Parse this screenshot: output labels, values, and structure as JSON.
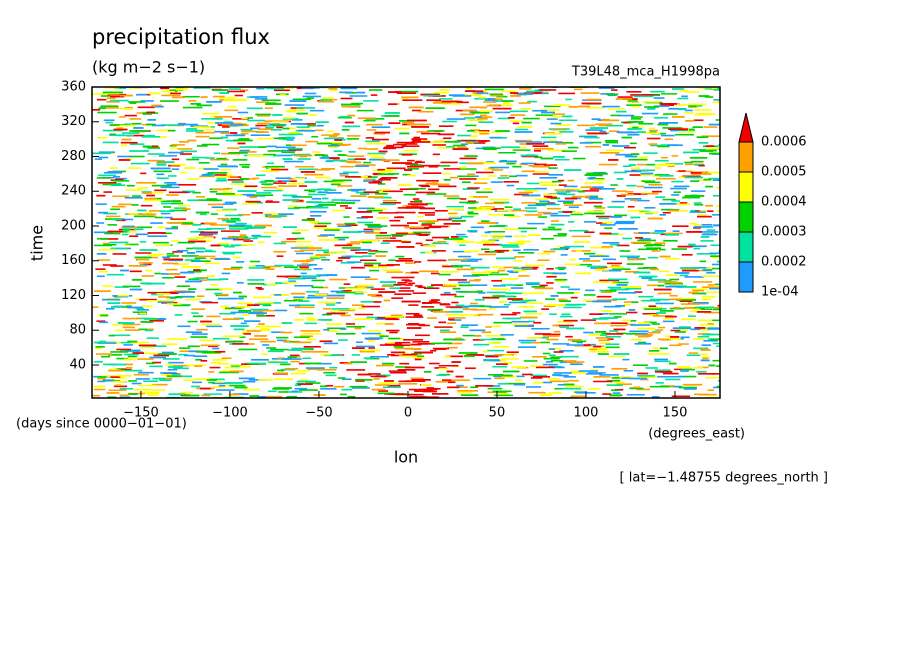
{
  "chart_data": {
    "type": "hovmoller",
    "title": "precipitation flux",
    "units": "(kg m−2 s−1)",
    "subtitle": "T39L48_mca_H1998pa",
    "xlabel": "lon",
    "ylabel": "time",
    "x_units": "(degrees_east)",
    "y_units": "(days since 0000−01−01)",
    "annotation": "[ lat=−1.48755 degrees_north ]",
    "xlim": [
      -177.5,
      175.3
    ],
    "xticks": [
      {
        "value": -150,
        "label": "−150"
      },
      {
        "value": -100,
        "label": "−100"
      },
      {
        "value": -50,
        "label": "−50"
      },
      0,
      50,
      100,
      150
    ],
    "ylim": [
      2,
      360
    ],
    "yticks": [
      40,
      80,
      120,
      160,
      200,
      240,
      280,
      320,
      360
    ],
    "colorbar": {
      "levels": [
        {
          "value": 0.0001,
          "label": "1e-04"
        },
        0.0002,
        0.0003,
        0.0004,
        0.0005,
        0.0006
      ],
      "colors": [
        "#1e9bff",
        "#00e3a0",
        "#00d200",
        "#ffff00",
        "#ffa000",
        "#f00000"
      ],
      "extend": "max"
    }
  }
}
